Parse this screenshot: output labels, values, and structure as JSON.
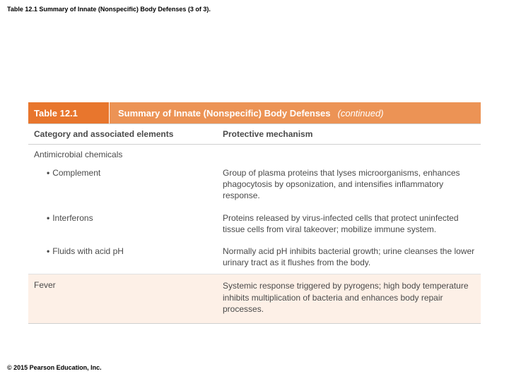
{
  "slide": {
    "title": "Table 12.1 Summary of Innate (Nonspecific) Body Defenses (3 of 3)."
  },
  "table": {
    "header": {
      "label": "Table 12.1",
      "title": "Summary of Innate (Nonspecific) Body Defenses",
      "continued": "(continued)"
    },
    "columns": {
      "left": "Category and associated elements",
      "right": "Protective mechanism"
    },
    "section": "Antimicrobial chemicals",
    "rows": [
      {
        "item": "Complement",
        "mechanism": "Group of plasma proteins that lyses microorganisms, enhances phagocytosis by opsonization, and intensifies inflammatory response."
      },
      {
        "item": "Interferons",
        "mechanism": "Proteins released by virus-infected cells that protect uninfected tissue cells from viral takeover; mobilize immune system."
      },
      {
        "item": "Fluids with acid pH",
        "mechanism": "Normally acid pH inhibits bacterial growth; urine cleanses the lower urinary tract as it flushes from the body."
      }
    ],
    "fever": {
      "label": "Fever",
      "mechanism": "Systemic response triggered by pyrogens; high body temperature inhibits multiplication of bacteria and enhances body repair processes."
    }
  },
  "copyright": "© 2015 Pearson Education, Inc."
}
